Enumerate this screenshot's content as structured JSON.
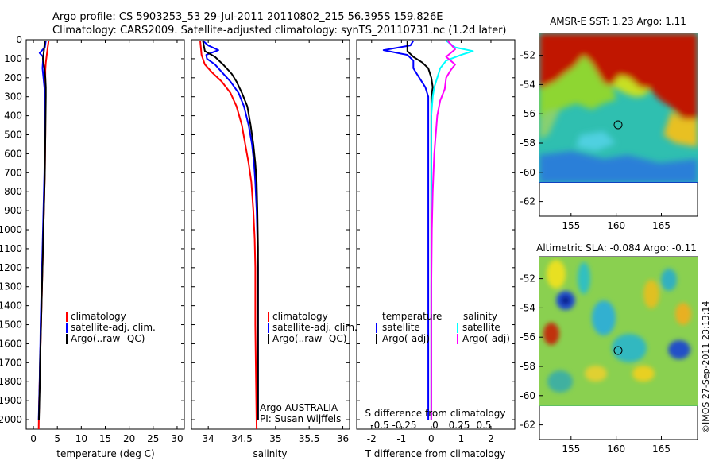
{
  "header": {
    "line1": "Argo profile: CS 5903253_53 29-Jul-2011 20110802_215 56.395S 159.826E",
    "line2": "Climatology: CARS2009. Satellite-adjusted climatology: synTS_20110731.nc (1.2d later)"
  },
  "credit": "©IMOS 27-Sep-2011 23:13:14",
  "chart_data": [
    {
      "id": "temperature",
      "type": "line",
      "xlabel": "temperature (deg C)",
      "ylabel": "",
      "xlim": [
        -1.5,
        31.5
      ],
      "ylim": [
        2050,
        0
      ],
      "xticks": [
        0,
        5,
        10,
        15,
        20,
        25,
        30
      ],
      "yticks": [
        0,
        100,
        200,
        300,
        400,
        500,
        600,
        700,
        800,
        900,
        1000,
        1100,
        1200,
        1300,
        1400,
        1500,
        1600,
        1700,
        1800,
        1900,
        2000
      ],
      "legend": [
        "climatology",
        "satellite-adj. clim.",
        "Argo(..raw -QC)"
      ],
      "legend_position": "center",
      "series": [
        {
          "name": "climatology",
          "color": "#ff0000",
          "points": [
            [
              3.2,
              5
            ],
            [
              3.0,
              40
            ],
            [
              2.8,
              80
            ],
            [
              2.6,
              120
            ],
            [
              2.5,
              160
            ],
            [
              2.5,
              220
            ],
            [
              2.5,
              300
            ],
            [
              2.5,
              400
            ],
            [
              2.5,
              500
            ],
            [
              2.45,
              600
            ],
            [
              2.4,
              700
            ],
            [
              2.3,
              800
            ],
            [
              2.2,
              900
            ],
            [
              2.1,
              1000
            ],
            [
              2.0,
              1100
            ],
            [
              1.9,
              1200
            ],
            [
              1.8,
              1300
            ],
            [
              1.7,
              1400
            ],
            [
              1.6,
              1500
            ],
            [
              1.5,
              1600
            ],
            [
              1.4,
              1700
            ],
            [
              1.3,
              1800
            ],
            [
              1.2,
              1900
            ],
            [
              1.1,
              2050
            ]
          ]
        },
        {
          "name": "satellite-adj. clim.",
          "color": "#0000ff",
          "points": [
            [
              2.6,
              5
            ],
            [
              2.4,
              40
            ],
            [
              1.3,
              70
            ],
            [
              2.0,
              90
            ],
            [
              2.0,
              110
            ],
            [
              1.9,
              150
            ],
            [
              2.1,
              200
            ],
            [
              2.3,
              250
            ],
            [
              2.4,
              300
            ],
            [
              2.4,
              400
            ],
            [
              2.4,
              500
            ],
            [
              2.35,
              600
            ],
            [
              2.3,
              700
            ],
            [
              2.2,
              800
            ],
            [
              2.1,
              900
            ],
            [
              2.0,
              1000
            ],
            [
              1.9,
              1100
            ],
            [
              1.8,
              1200
            ],
            [
              1.7,
              1300
            ],
            [
              1.6,
              1400
            ],
            [
              1.5,
              1500
            ],
            [
              1.45,
              1600
            ],
            [
              1.35,
              1700
            ],
            [
              1.3,
              1800
            ],
            [
              1.2,
              1900
            ],
            [
              1.1,
              2000
            ]
          ]
        },
        {
          "name": "Argo(..raw -QC)",
          "color": "#000000",
          "points": [
            [
              2.4,
              5
            ],
            [
              2.2,
              60
            ],
            [
              2.0,
              100
            ],
            [
              2.3,
              150
            ],
            [
              2.5,
              200
            ],
            [
              2.6,
              250
            ],
            [
              2.6,
              300
            ],
            [
              2.55,
              400
            ],
            [
              2.5,
              500
            ],
            [
              2.45,
              600
            ],
            [
              2.4,
              700
            ],
            [
              2.3,
              800
            ],
            [
              2.2,
              900
            ],
            [
              2.1,
              1000
            ],
            [
              2.0,
              1100
            ],
            [
              1.9,
              1200
            ],
            [
              1.8,
              1300
            ],
            [
              1.7,
              1400
            ],
            [
              1.6,
              1500
            ],
            [
              1.5,
              1600
            ],
            [
              1.4,
              1700
            ],
            [
              1.35,
              1800
            ],
            [
              1.25,
              1900
            ],
            [
              1.15,
              2000
            ]
          ]
        }
      ]
    },
    {
      "id": "salinity",
      "type": "line",
      "xlabel": "salinity",
      "ylabel": "",
      "xlim": [
        33.75,
        36.1
      ],
      "ylim": [
        2050,
        0
      ],
      "xticks": [
        34,
        34.5,
        35,
        35.5,
        36
      ],
      "legend": [
        "climatology",
        "satellite-adj. clim.",
        "Argo(..raw -QC)"
      ],
      "legend_position": "center",
      "annotations": [
        "Argo AUSTRALIA",
        "PI: Susan Wijffels"
      ],
      "series": [
        {
          "name": "climatology",
          "color": "#ff0000",
          "points": [
            [
              33.88,
              5
            ],
            [
              33.9,
              80
            ],
            [
              33.95,
              130
            ],
            [
              34.05,
              170
            ],
            [
              34.2,
              220
            ],
            [
              34.33,
              280
            ],
            [
              34.42,
              350
            ],
            [
              34.5,
              450
            ],
            [
              34.55,
              550
            ],
            [
              34.6,
              650
            ],
            [
              34.64,
              750
            ],
            [
              34.67,
              900
            ],
            [
              34.69,
              1050
            ],
            [
              34.7,
              1200
            ],
            [
              34.7,
              1500
            ],
            [
              34.71,
              1800
            ],
            [
              34.72,
              2050
            ]
          ]
        },
        {
          "name": "satellite-adj. clim.",
          "color": "#0000ff",
          "points": [
            [
              33.92,
              5
            ],
            [
              34.0,
              30
            ],
            [
              34.15,
              55
            ],
            [
              33.97,
              80
            ],
            [
              33.98,
              100
            ],
            [
              34.1,
              130
            ],
            [
              34.2,
              170
            ],
            [
              34.33,
              220
            ],
            [
              34.45,
              280
            ],
            [
              34.53,
              350
            ],
            [
              34.6,
              450
            ],
            [
              34.65,
              550
            ],
            [
              34.68,
              650
            ],
            [
              34.7,
              750
            ],
            [
              34.72,
              900
            ],
            [
              34.73,
              1050
            ],
            [
              34.74,
              1200
            ],
            [
              34.74,
              1500
            ],
            [
              34.74,
              1800
            ],
            [
              34.74,
              2000
            ]
          ]
        },
        {
          "name": "Argo(..raw -QC)",
          "color": "#000000",
          "points": [
            [
              33.92,
              5
            ],
            [
              33.95,
              60
            ],
            [
              34.1,
              90
            ],
            [
              34.22,
              130
            ],
            [
              34.35,
              180
            ],
            [
              34.42,
              220
            ],
            [
              34.5,
              280
            ],
            [
              34.58,
              350
            ],
            [
              34.63,
              450
            ],
            [
              34.67,
              550
            ],
            [
              34.7,
              650
            ],
            [
              34.72,
              750
            ],
            [
              34.73,
              900
            ],
            [
              34.74,
              1100
            ],
            [
              34.74,
              1400
            ],
            [
              34.74,
              1700
            ],
            [
              34.74,
              2000
            ]
          ]
        }
      ]
    },
    {
      "id": "difference",
      "type": "line",
      "xlabel": "T difference from climatology",
      "xlabel_top": "S difference from climatology",
      "xlim": [
        -2.5,
        2.8
      ],
      "ylim": [
        2050,
        0
      ],
      "xticks": [
        -2,
        -1,
        0,
        1,
        2
      ],
      "xticks_s": [
        -0.5,
        -0.25,
        0,
        0.25,
        0.5
      ],
      "legend_left_title": "temperature",
      "legend_right_title": "salinity",
      "legend_left": [
        "satellite",
        "Argo(-adj)"
      ],
      "legend_right": [
        "satellite",
        "Argo(-adj)"
      ],
      "series": [
        {
          "name": "temperature satellite",
          "color": "#0000ff",
          "points": [
            [
              -0.6,
              5
            ],
            [
              -0.7,
              30
            ],
            [
              -1.6,
              55
            ],
            [
              -0.8,
              80
            ],
            [
              -0.6,
              110
            ],
            [
              -0.6,
              150
            ],
            [
              -0.4,
              200
            ],
            [
              -0.2,
              250
            ],
            [
              -0.1,
              300
            ],
            [
              -0.1,
              400
            ],
            [
              -0.1,
              600
            ],
            [
              -0.1,
              800
            ],
            [
              -0.1,
              1000
            ],
            [
              -0.1,
              1300
            ],
            [
              -0.1,
              1600
            ],
            [
              -0.1,
              2000
            ]
          ]
        },
        {
          "name": "temperature Argo(-adj)",
          "color": "#000000",
          "points": [
            [
              -0.8,
              5
            ],
            [
              -0.8,
              60
            ],
            [
              -0.6,
              90
            ],
            [
              -0.3,
              120
            ],
            [
              -0.1,
              150
            ],
            [
              0.0,
              200
            ],
            [
              0.05,
              250
            ],
            [
              0.0,
              300
            ],
            [
              0.0,
              400
            ],
            [
              0.0,
              600
            ],
            [
              0.0,
              800
            ],
            [
              0.0,
              1000
            ],
            [
              0.0,
              1300
            ],
            [
              0.0,
              1600
            ],
            [
              0.0,
              2000
            ]
          ]
        },
        {
          "name": "salinity satellite",
          "color": "#00ffff",
          "points": [
            [
              0.5,
              5
            ],
            [
              0.8,
              40
            ],
            [
              1.4,
              60
            ],
            [
              1.0,
              80
            ],
            [
              0.5,
              110
            ],
            [
              0.3,
              150
            ],
            [
              0.2,
              200
            ],
            [
              0.1,
              250
            ],
            [
              0.05,
              300
            ],
            [
              0.0,
              400
            ],
            [
              0.0,
              600
            ],
            [
              0.0,
              800
            ],
            [
              0.0,
              1000
            ],
            [
              0.0,
              1300
            ],
            [
              0.0,
              1600
            ],
            [
              0.0,
              2000
            ]
          ]
        },
        {
          "name": "salinity Argo(-adj)",
          "color": "#ff00ff",
          "points": [
            [
              0.55,
              5
            ],
            [
              0.8,
              50
            ],
            [
              0.5,
              90
            ],
            [
              0.8,
              130
            ],
            [
              0.65,
              160
            ],
            [
              0.5,
              200
            ],
            [
              0.45,
              260
            ],
            [
              0.3,
              320
            ],
            [
              0.2,
              400
            ],
            [
              0.15,
              500
            ],
            [
              0.1,
              600
            ],
            [
              0.05,
              800
            ],
            [
              0.02,
              1000
            ],
            [
              0.0,
              1300
            ],
            [
              0.0,
              1600
            ],
            [
              0.0,
              2000
            ]
          ]
        }
      ]
    },
    {
      "id": "sst-map",
      "type": "heatmap",
      "title": "AMSR-E SST: 1.23 Argo: 1.11",
      "xlim": [
        151.5,
        169
      ],
      "ylim": [
        -63,
        -50.5
      ],
      "xticks": [
        155,
        160,
        165
      ],
      "yticks": [
        -52,
        -54,
        -56,
        -58,
        -60,
        -62
      ],
      "data_extent_lat": [
        -60,
        -50.5
      ],
      "argo_position": {
        "lon": 159.826,
        "lat": -56.395
      }
    },
    {
      "id": "sla-map",
      "type": "heatmap",
      "title": "Altimetric SLA: -0.084 Argo: -0.11",
      "xlim": [
        151.5,
        169
      ],
      "ylim": [
        -63,
        -50.5
      ],
      "xticks": [
        155,
        160,
        165
      ],
      "yticks": [
        -52,
        -54,
        -56,
        -58,
        -60,
        -62
      ],
      "data_extent_lat": [
        -60,
        -50.5
      ],
      "argo_position": {
        "lon": 159.826,
        "lat": -56.395
      }
    }
  ]
}
